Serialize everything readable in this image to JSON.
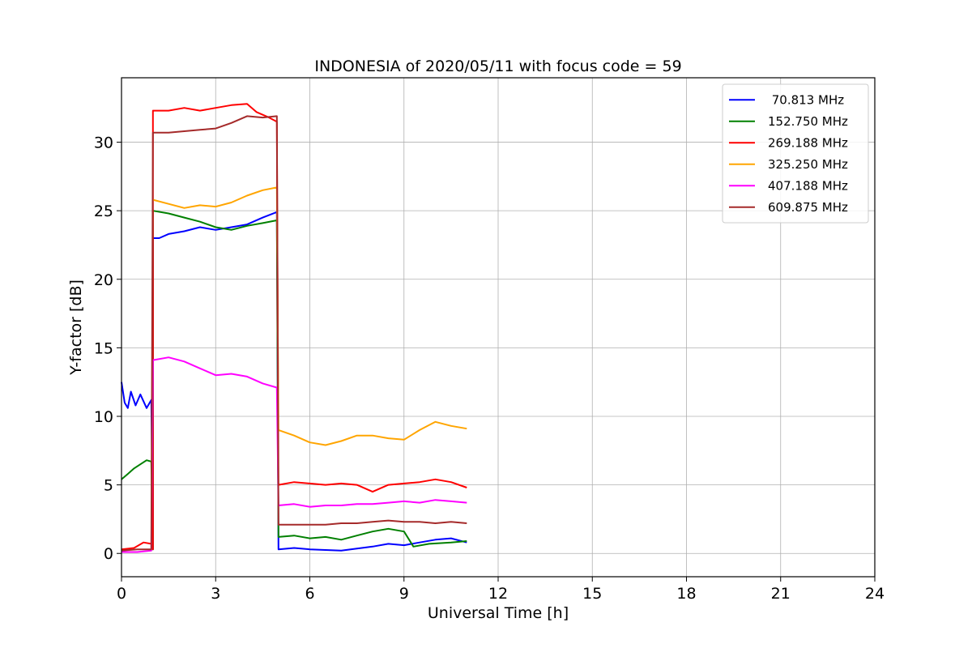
{
  "chart_data": {
    "type": "line",
    "title": "INDONESIA of 2020/05/11 with focus code = 59",
    "xlabel": "Universal Time [h]",
    "ylabel": "Y-factor [dB]",
    "xlim": [
      0,
      24
    ],
    "ylim": [
      -1.7,
      34.7
    ],
    "xticks": [
      0,
      3,
      6,
      9,
      12,
      15,
      18,
      21,
      24
    ],
    "yticks": [
      0,
      5,
      10,
      15,
      20,
      25,
      30
    ],
    "grid": true,
    "legend_position": "top-right",
    "series": [
      {
        "name": " 70.813 MHz",
        "color": "#0000ff",
        "points": [
          [
            0,
            12.5
          ],
          [
            0.1,
            11
          ],
          [
            0.2,
            10.6
          ],
          [
            0.3,
            11.8
          ],
          [
            0.45,
            10.8
          ],
          [
            0.6,
            11.6
          ],
          [
            0.8,
            10.6
          ],
          [
            0.95,
            11.2
          ],
          [
            1.0,
            0.3
          ],
          [
            1.0,
            23.0
          ],
          [
            1.2,
            23.0
          ],
          [
            1.5,
            23.3
          ],
          [
            2,
            23.5
          ],
          [
            2.5,
            23.8
          ],
          [
            3,
            23.6
          ],
          [
            3.5,
            23.8
          ],
          [
            4,
            24.0
          ],
          [
            4.5,
            24.5
          ],
          [
            4.95,
            24.9
          ],
          [
            5.0,
            0.3
          ],
          [
            5.5,
            0.4
          ],
          [
            6,
            0.3
          ],
          [
            7,
            0.2
          ],
          [
            8,
            0.5
          ],
          [
            8.5,
            0.7
          ],
          [
            9,
            0.6
          ],
          [
            9.5,
            0.8
          ],
          [
            10,
            1.0
          ],
          [
            10.5,
            1.1
          ],
          [
            11,
            0.8
          ]
        ]
      },
      {
        "name": "152.750 MHz",
        "color": "#008000",
        "points": [
          [
            0,
            5.4
          ],
          [
            0.2,
            5.8
          ],
          [
            0.4,
            6.2
          ],
          [
            0.6,
            6.5
          ],
          [
            0.8,
            6.8
          ],
          [
            0.95,
            6.7
          ],
          [
            1.0,
            0.3
          ],
          [
            1.0,
            25.0
          ],
          [
            1.5,
            24.8
          ],
          [
            2,
            24.5
          ],
          [
            2.5,
            24.2
          ],
          [
            3,
            23.8
          ],
          [
            3.5,
            23.6
          ],
          [
            4,
            23.9
          ],
          [
            4.5,
            24.1
          ],
          [
            4.95,
            24.3
          ],
          [
            5.0,
            1.2
          ],
          [
            5.5,
            1.3
          ],
          [
            6,
            1.1
          ],
          [
            6.5,
            1.2
          ],
          [
            7,
            1.0
          ],
          [
            7.5,
            1.3
          ],
          [
            8,
            1.6
          ],
          [
            8.5,
            1.8
          ],
          [
            9,
            1.6
          ],
          [
            9.3,
            0.5
          ],
          [
            9.8,
            0.7
          ],
          [
            10.5,
            0.8
          ],
          [
            11,
            0.9
          ]
        ]
      },
      {
        "name": "269.188 MHz",
        "color": "#ff0000",
        "points": [
          [
            0,
            0.3
          ],
          [
            0.4,
            0.4
          ],
          [
            0.7,
            0.8
          ],
          [
            0.95,
            0.7
          ],
          [
            1.0,
            0.3
          ],
          [
            1.0,
            32.3
          ],
          [
            1.5,
            32.3
          ],
          [
            2,
            32.5
          ],
          [
            2.5,
            32.3
          ],
          [
            3,
            32.5
          ],
          [
            3.5,
            32.7
          ],
          [
            4,
            32.8
          ],
          [
            4.3,
            32.2
          ],
          [
            4.7,
            31.8
          ],
          [
            4.95,
            31.5
          ],
          [
            5.0,
            5.0
          ],
          [
            5.5,
            5.2
          ],
          [
            6,
            5.1
          ],
          [
            6.5,
            5.0
          ],
          [
            7,
            5.1
          ],
          [
            7.5,
            5.0
          ],
          [
            8,
            4.5
          ],
          [
            8.5,
            5.0
          ],
          [
            9,
            5.1
          ],
          [
            9.5,
            5.2
          ],
          [
            10,
            5.4
          ],
          [
            10.5,
            5.2
          ],
          [
            11,
            4.8
          ]
        ]
      },
      {
        "name": "325.250 MHz",
        "color": "#ffa500",
        "points": [
          [
            1.0,
            25.8
          ],
          [
            1.5,
            25.5
          ],
          [
            2,
            25.2
          ],
          [
            2.5,
            25.4
          ],
          [
            3,
            25.3
          ],
          [
            3.5,
            25.6
          ],
          [
            4,
            26.1
          ],
          [
            4.5,
            26.5
          ],
          [
            4.95,
            26.7
          ],
          [
            5.0,
            9.0
          ],
          [
            5.5,
            8.6
          ],
          [
            6,
            8.1
          ],
          [
            6.5,
            7.9
          ],
          [
            7,
            8.2
          ],
          [
            7.5,
            8.6
          ],
          [
            8,
            8.6
          ],
          [
            8.5,
            8.4
          ],
          [
            9,
            8.3
          ],
          [
            9.5,
            9.0
          ],
          [
            10,
            9.6
          ],
          [
            10.5,
            9.3
          ],
          [
            11,
            9.1
          ]
        ]
      },
      {
        "name": "407.188 MHz",
        "color": "#ff00ff",
        "points": [
          [
            0,
            0.1
          ],
          [
            0.5,
            0.1
          ],
          [
            0.95,
            0.2
          ],
          [
            1.0,
            14.1
          ],
          [
            1.5,
            14.3
          ],
          [
            2,
            14.0
          ],
          [
            2.5,
            13.5
          ],
          [
            3,
            13.0
          ],
          [
            3.5,
            13.1
          ],
          [
            4,
            12.9
          ],
          [
            4.5,
            12.4
          ],
          [
            4.95,
            12.1
          ],
          [
            5.0,
            3.5
          ],
          [
            5.5,
            3.6
          ],
          [
            6,
            3.4
          ],
          [
            6.5,
            3.5
          ],
          [
            7,
            3.5
          ],
          [
            7.5,
            3.6
          ],
          [
            8,
            3.6
          ],
          [
            8.5,
            3.7
          ],
          [
            9,
            3.8
          ],
          [
            9.5,
            3.7
          ],
          [
            10,
            3.9
          ],
          [
            10.5,
            3.8
          ],
          [
            11,
            3.7
          ]
        ]
      },
      {
        "name": "609.875 MHz",
        "color": "#a52a2a",
        "points": [
          [
            0,
            0.2
          ],
          [
            0.5,
            0.3
          ],
          [
            0.95,
            0.3
          ],
          [
            1.0,
            30.7
          ],
          [
            1.5,
            30.7
          ],
          [
            2,
            30.8
          ],
          [
            2.5,
            30.9
          ],
          [
            3,
            31.0
          ],
          [
            3.5,
            31.4
          ],
          [
            4,
            31.9
          ],
          [
            4.5,
            31.8
          ],
          [
            4.95,
            31.9
          ],
          [
            5.0,
            2.1
          ],
          [
            5.5,
            2.1
          ],
          [
            6,
            2.1
          ],
          [
            6.5,
            2.1
          ],
          [
            7,
            2.2
          ],
          [
            7.5,
            2.2
          ],
          [
            8,
            2.3
          ],
          [
            8.5,
            2.4
          ],
          [
            9,
            2.3
          ],
          [
            9.5,
            2.3
          ],
          [
            10,
            2.2
          ],
          [
            10.5,
            2.3
          ],
          [
            11,
            2.2
          ]
        ]
      }
    ]
  }
}
